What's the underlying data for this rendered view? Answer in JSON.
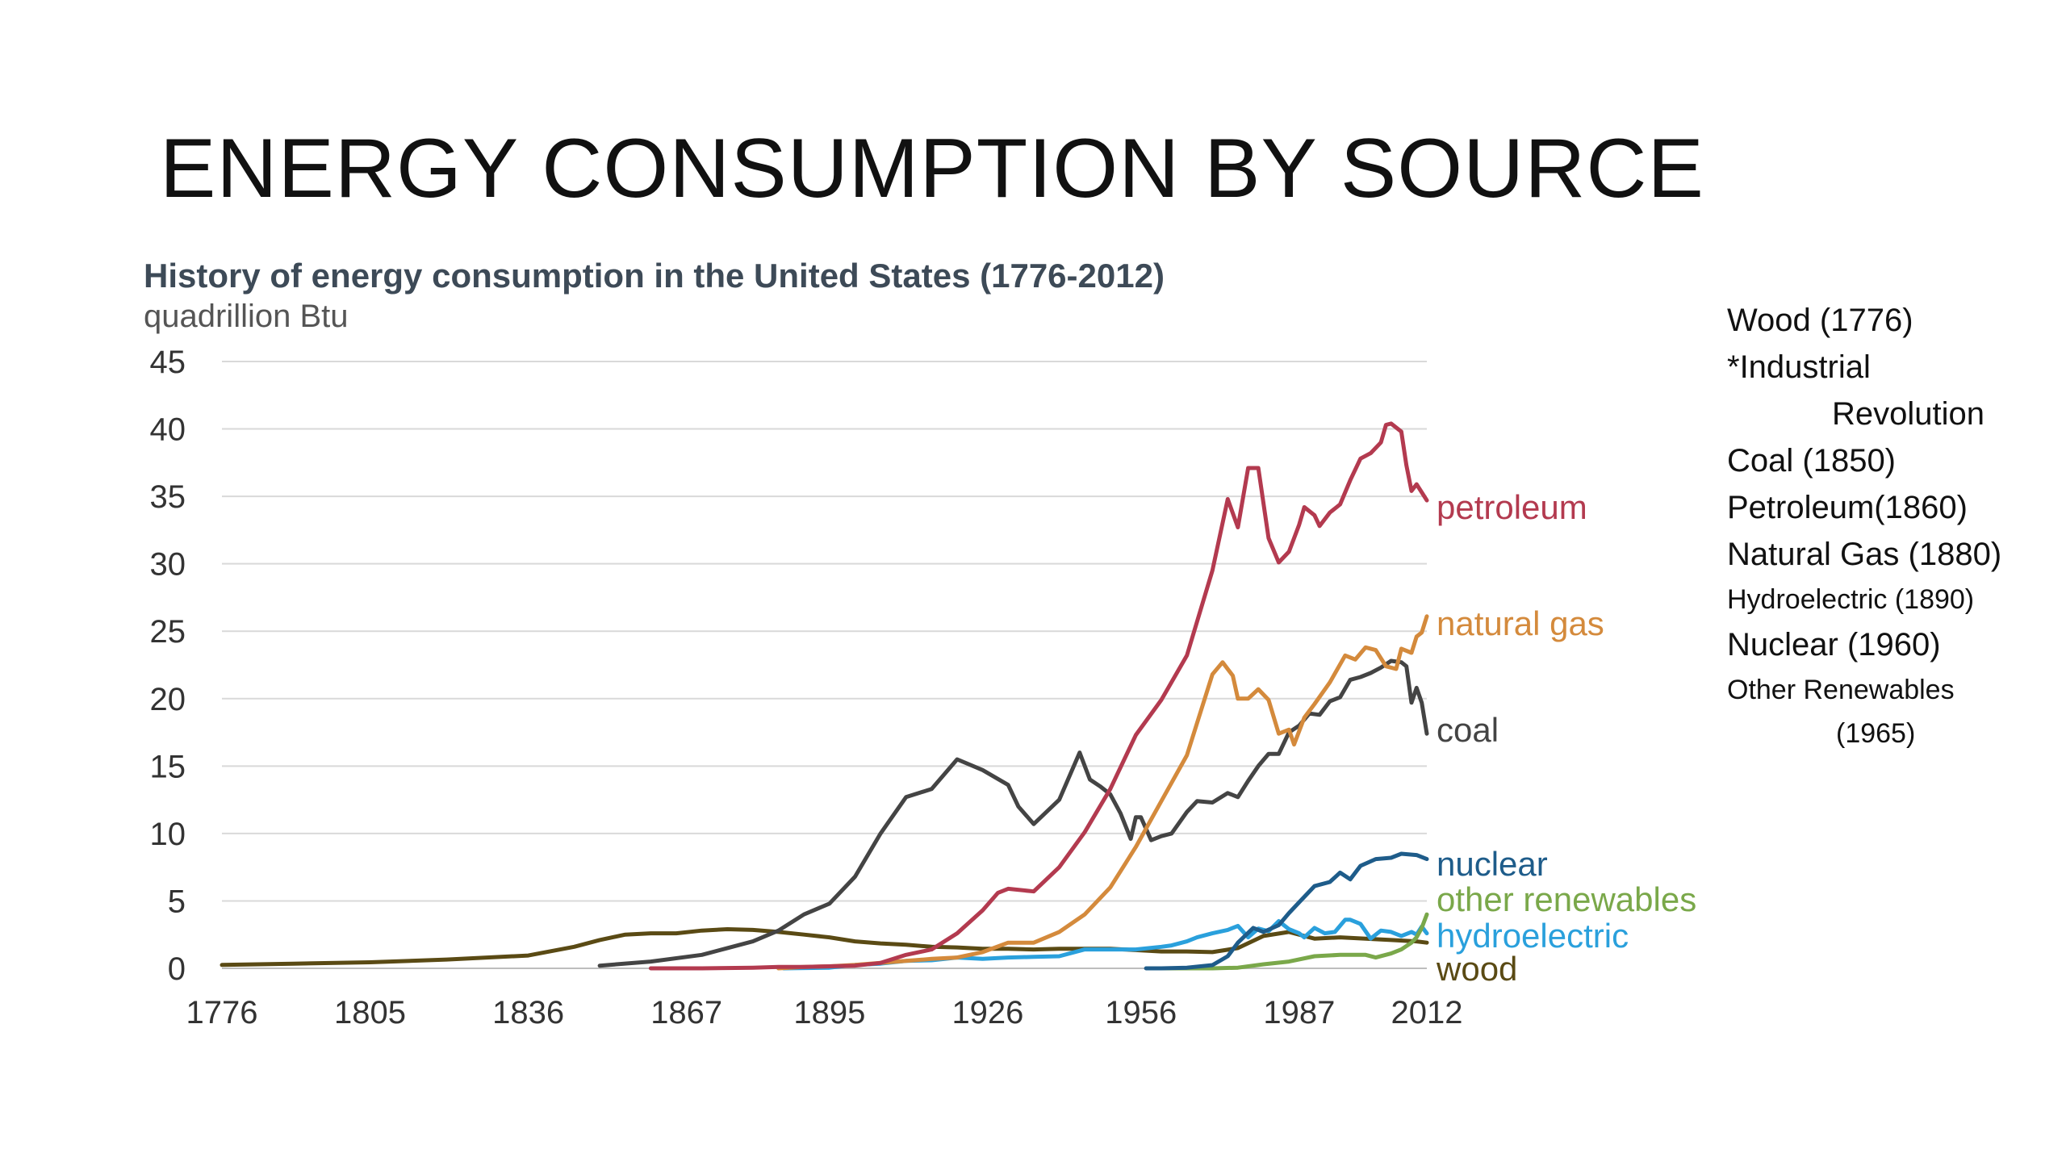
{
  "slide": {
    "title": "ENERGY CONSUMPTION BY SOURCE"
  },
  "notes": [
    {
      "text": "Wood (1776)",
      "size": "large"
    },
    {
      "text": "*Industrial",
      "size": "large"
    },
    {
      "text": "Revolution",
      "size": "large",
      "indent": true
    },
    {
      "text": "Coal (1850)",
      "size": "large"
    },
    {
      "text": "Petroleum(1860)",
      "size": "large"
    },
    {
      "text": "Natural Gas (1880)",
      "size": "large"
    },
    {
      "text": "Hydroelectric (1890)",
      "size": "small"
    },
    {
      "text": "Nuclear (1960)",
      "size": "large"
    },
    {
      "text": "Other Renewables",
      "size": "small"
    },
    {
      "text": "(1965)",
      "size": "small",
      "indent": true
    }
  ],
  "chart_data": {
    "type": "line",
    "title": "History of energy consumption in the United States (1776-2012)",
    "subtitle": "quadrillion Btu",
    "xlabel": "",
    "ylabel": "",
    "xlim": [
      1776,
      2012
    ],
    "ylim": [
      0,
      45
    ],
    "x_ticks": [
      "1776",
      "1805",
      "1836",
      "1867",
      "1895",
      "1926",
      "1956",
      "1987",
      "2012"
    ],
    "y_ticks": [
      "0",
      "5",
      "10",
      "15",
      "20",
      "25",
      "30",
      "35",
      "40",
      "45"
    ],
    "grid": true,
    "legend": "inline labels at right end of lines",
    "series": [
      {
        "name": "petroleum",
        "color": "#b33a4f",
        "points": [
          [
            1860,
            0
          ],
          [
            1870,
            0
          ],
          [
            1880,
            0.05
          ],
          [
            1885,
            0.1
          ],
          [
            1890,
            0.1
          ],
          [
            1895,
            0.15
          ],
          [
            1900,
            0.2
          ],
          [
            1905,
            0.4
          ],
          [
            1910,
            1.0
          ],
          [
            1915,
            1.4
          ],
          [
            1920,
            2.6
          ],
          [
            1925,
            4.3
          ],
          [
            1928,
            5.6
          ],
          [
            1930,
            5.9
          ],
          [
            1935,
            5.7
          ],
          [
            1940,
            7.5
          ],
          [
            1945,
            10.1
          ],
          [
            1950,
            13.3
          ],
          [
            1955,
            17.3
          ],
          [
            1960,
            19.9
          ],
          [
            1965,
            23.2
          ],
          [
            1970,
            29.5
          ],
          [
            1973,
            34.8
          ],
          [
            1975,
            32.7
          ],
          [
            1977,
            37.1
          ],
          [
            1979,
            37.1
          ],
          [
            1981,
            31.9
          ],
          [
            1983,
            30.1
          ],
          [
            1985,
            30.9
          ],
          [
            1987,
            32.9
          ],
          [
            1988,
            34.2
          ],
          [
            1990,
            33.6
          ],
          [
            1991,
            32.8
          ],
          [
            1993,
            33.8
          ],
          [
            1995,
            34.4
          ],
          [
            1997,
            36.2
          ],
          [
            1999,
            37.8
          ],
          [
            2001,
            38.2
          ],
          [
            2003,
            39.0
          ],
          [
            2004,
            40.3
          ],
          [
            2005,
            40.4
          ],
          [
            2007,
            39.8
          ],
          [
            2008,
            37.3
          ],
          [
            2009,
            35.4
          ],
          [
            2010,
            35.9
          ],
          [
            2011,
            35.3
          ],
          [
            2012,
            34.7
          ]
        ]
      },
      {
        "name": "natural gas",
        "color": "#d48a3c",
        "points": [
          [
            1885,
            0
          ],
          [
            1890,
            0.1
          ],
          [
            1895,
            0.15
          ],
          [
            1900,
            0.25
          ],
          [
            1905,
            0.4
          ],
          [
            1910,
            0.55
          ],
          [
            1915,
            0.7
          ],
          [
            1920,
            0.8
          ],
          [
            1925,
            1.2
          ],
          [
            1930,
            1.9
          ],
          [
            1935,
            1.9
          ],
          [
            1940,
            2.7
          ],
          [
            1945,
            4.0
          ],
          [
            1950,
            6.0
          ],
          [
            1955,
            9.0
          ],
          [
            1960,
            12.4
          ],
          [
            1965,
            15.8
          ],
          [
            1970,
            21.8
          ],
          [
            1972,
            22.7
          ],
          [
            1974,
            21.7
          ],
          [
            1975,
            20.0
          ],
          [
            1977,
            20.0
          ],
          [
            1979,
            20.7
          ],
          [
            1981,
            19.9
          ],
          [
            1983,
            17.4
          ],
          [
            1985,
            17.7
          ],
          [
            1986,
            16.6
          ],
          [
            1988,
            18.6
          ],
          [
            1990,
            19.6
          ],
          [
            1993,
            21.2
          ],
          [
            1996,
            23.2
          ],
          [
            1998,
            22.9
          ],
          [
            2000,
            23.8
          ],
          [
            2002,
            23.6
          ],
          [
            2004,
            22.4
          ],
          [
            2006,
            22.2
          ],
          [
            2007,
            23.7
          ],
          [
            2009,
            23.4
          ],
          [
            2010,
            24.6
          ],
          [
            2011,
            24.9
          ],
          [
            2012,
            26.1
          ]
        ]
      },
      {
        "name": "coal",
        "color": "#444444",
        "points": [
          [
            1850,
            0.2
          ],
          [
            1860,
            0.5
          ],
          [
            1870,
            1.0
          ],
          [
            1875,
            1.5
          ],
          [
            1880,
            2.0
          ],
          [
            1885,
            2.8
          ],
          [
            1890,
            4.0
          ],
          [
            1895,
            4.8
          ],
          [
            1900,
            6.8
          ],
          [
            1905,
            10.0
          ],
          [
            1910,
            12.7
          ],
          [
            1915,
            13.3
          ],
          [
            1920,
            15.5
          ],
          [
            1925,
            14.7
          ],
          [
            1930,
            13.6
          ],
          [
            1932,
            12.0
          ],
          [
            1935,
            10.7
          ],
          [
            1940,
            12.5
          ],
          [
            1944,
            16.0
          ],
          [
            1946,
            14.0
          ],
          [
            1948,
            13.5
          ],
          [
            1950,
            12.9
          ],
          [
            1952,
            11.5
          ],
          [
            1954,
            9.6
          ],
          [
            1955,
            11.2
          ],
          [
            1956,
            11.2
          ],
          [
            1958,
            9.5
          ],
          [
            1960,
            9.8
          ],
          [
            1962,
            10.0
          ],
          [
            1965,
            11.6
          ],
          [
            1967,
            12.4
          ],
          [
            1970,
            12.3
          ],
          [
            1973,
            13.0
          ],
          [
            1975,
            12.7
          ],
          [
            1977,
            13.9
          ],
          [
            1979,
            15.0
          ],
          [
            1981,
            15.9
          ],
          [
            1983,
            15.9
          ],
          [
            1985,
            17.5
          ],
          [
            1987,
            18.0
          ],
          [
            1989,
            18.9
          ],
          [
            1991,
            18.8
          ],
          [
            1993,
            19.8
          ],
          [
            1995,
            20.1
          ],
          [
            1997,
            21.4
          ],
          [
            1999,
            21.6
          ],
          [
            2001,
            21.9
          ],
          [
            2003,
            22.3
          ],
          [
            2005,
            22.8
          ],
          [
            2007,
            22.7
          ],
          [
            2008,
            22.4
          ],
          [
            2009,
            19.7
          ],
          [
            2010,
            20.8
          ],
          [
            2011,
            19.7
          ],
          [
            2012,
            17.4
          ]
        ]
      },
      {
        "name": "nuclear",
        "color": "#1e5c8a",
        "points": [
          [
            1957,
            0
          ],
          [
            1960,
            0
          ],
          [
            1965,
            0.05
          ],
          [
            1970,
            0.24
          ],
          [
            1973,
            0.9
          ],
          [
            1975,
            1.9
          ],
          [
            1978,
            3.0
          ],
          [
            1980,
            2.7
          ],
          [
            1983,
            3.2
          ],
          [
            1985,
            4.1
          ],
          [
            1987,
            4.9
          ],
          [
            1990,
            6.1
          ],
          [
            1993,
            6.4
          ],
          [
            1995,
            7.1
          ],
          [
            1997,
            6.6
          ],
          [
            1999,
            7.6
          ],
          [
            2002,
            8.1
          ],
          [
            2005,
            8.2
          ],
          [
            2007,
            8.5
          ],
          [
            2010,
            8.4
          ],
          [
            2012,
            8.1
          ]
        ]
      },
      {
        "name": "other renewables",
        "color": "#7aa84a",
        "points": [
          [
            1960,
            0
          ],
          [
            1965,
            0
          ],
          [
            1970,
            0
          ],
          [
            1975,
            0.05
          ],
          [
            1980,
            0.3
          ],
          [
            1985,
            0.5
          ],
          [
            1990,
            0.9
          ],
          [
            1995,
            1.0
          ],
          [
            2000,
            1.0
          ],
          [
            2002,
            0.8
          ],
          [
            2005,
            1.1
          ],
          [
            2007,
            1.4
          ],
          [
            2009,
            1.9
          ],
          [
            2010,
            2.3
          ],
          [
            2011,
            3.0
          ],
          [
            2012,
            4.0
          ]
        ]
      },
      {
        "name": "hydroelectric",
        "color": "#2aa0dc",
        "points": [
          [
            1886,
            0
          ],
          [
            1895,
            0.05
          ],
          [
            1900,
            0.25
          ],
          [
            1905,
            0.35
          ],
          [
            1910,
            0.55
          ],
          [
            1915,
            0.6
          ],
          [
            1920,
            0.8
          ],
          [
            1925,
            0.7
          ],
          [
            1930,
            0.8
          ],
          [
            1935,
            0.85
          ],
          [
            1940,
            0.9
          ],
          [
            1945,
            1.4
          ],
          [
            1950,
            1.4
          ],
          [
            1955,
            1.4
          ],
          [
            1960,
            1.6
          ],
          [
            1962,
            1.7
          ],
          [
            1965,
            2.0
          ],
          [
            1967,
            2.3
          ],
          [
            1970,
            2.6
          ],
          [
            1973,
            2.85
          ],
          [
            1975,
            3.15
          ],
          [
            1977,
            2.3
          ],
          [
            1979,
            2.95
          ],
          [
            1981,
            2.75
          ],
          [
            1983,
            3.5
          ],
          [
            1985,
            2.9
          ],
          [
            1987,
            2.6
          ],
          [
            1988,
            2.3
          ],
          [
            1990,
            3.0
          ],
          [
            1992,
            2.6
          ],
          [
            1994,
            2.7
          ],
          [
            1996,
            3.6
          ],
          [
            1997,
            3.6
          ],
          [
            1999,
            3.3
          ],
          [
            2001,
            2.2
          ],
          [
            2003,
            2.8
          ],
          [
            2005,
            2.7
          ],
          [
            2007,
            2.4
          ],
          [
            2009,
            2.7
          ],
          [
            2010,
            2.5
          ],
          [
            2011,
            3.1
          ],
          [
            2012,
            2.6
          ]
        ]
      },
      {
        "name": "wood",
        "color": "#5a4a14",
        "points": [
          [
            1776,
            0.25
          ],
          [
            1790,
            0.35
          ],
          [
            1805,
            0.45
          ],
          [
            1820,
            0.65
          ],
          [
            1836,
            0.95
          ],
          [
            1845,
            1.6
          ],
          [
            1850,
            2.1
          ],
          [
            1855,
            2.5
          ],
          [
            1860,
            2.6
          ],
          [
            1865,
            2.6
          ],
          [
            1870,
            2.8
          ],
          [
            1875,
            2.9
          ],
          [
            1880,
            2.85
          ],
          [
            1885,
            2.7
          ],
          [
            1890,
            2.5
          ],
          [
            1895,
            2.3
          ],
          [
            1900,
            2.0
          ],
          [
            1905,
            1.85
          ],
          [
            1910,
            1.75
          ],
          [
            1915,
            1.6
          ],
          [
            1920,
            1.55
          ],
          [
            1925,
            1.45
          ],
          [
            1930,
            1.45
          ],
          [
            1935,
            1.4
          ],
          [
            1940,
            1.45
          ],
          [
            1945,
            1.45
          ],
          [
            1950,
            1.45
          ],
          [
            1955,
            1.35
          ],
          [
            1960,
            1.25
          ],
          [
            1965,
            1.25
          ],
          [
            1970,
            1.2
          ],
          [
            1975,
            1.5
          ],
          [
            1980,
            2.4
          ],
          [
            1985,
            2.7
          ],
          [
            1990,
            2.2
          ],
          [
            1995,
            2.3
          ],
          [
            2000,
            2.2
          ],
          [
            2005,
            2.1
          ],
          [
            2010,
            2.0
          ],
          [
            2012,
            1.9
          ]
        ]
      }
    ],
    "series_labels": [
      "petroleum",
      "natural gas",
      "coal",
      "nuclear",
      "other renewables",
      "hydroelectric",
      "wood"
    ]
  }
}
